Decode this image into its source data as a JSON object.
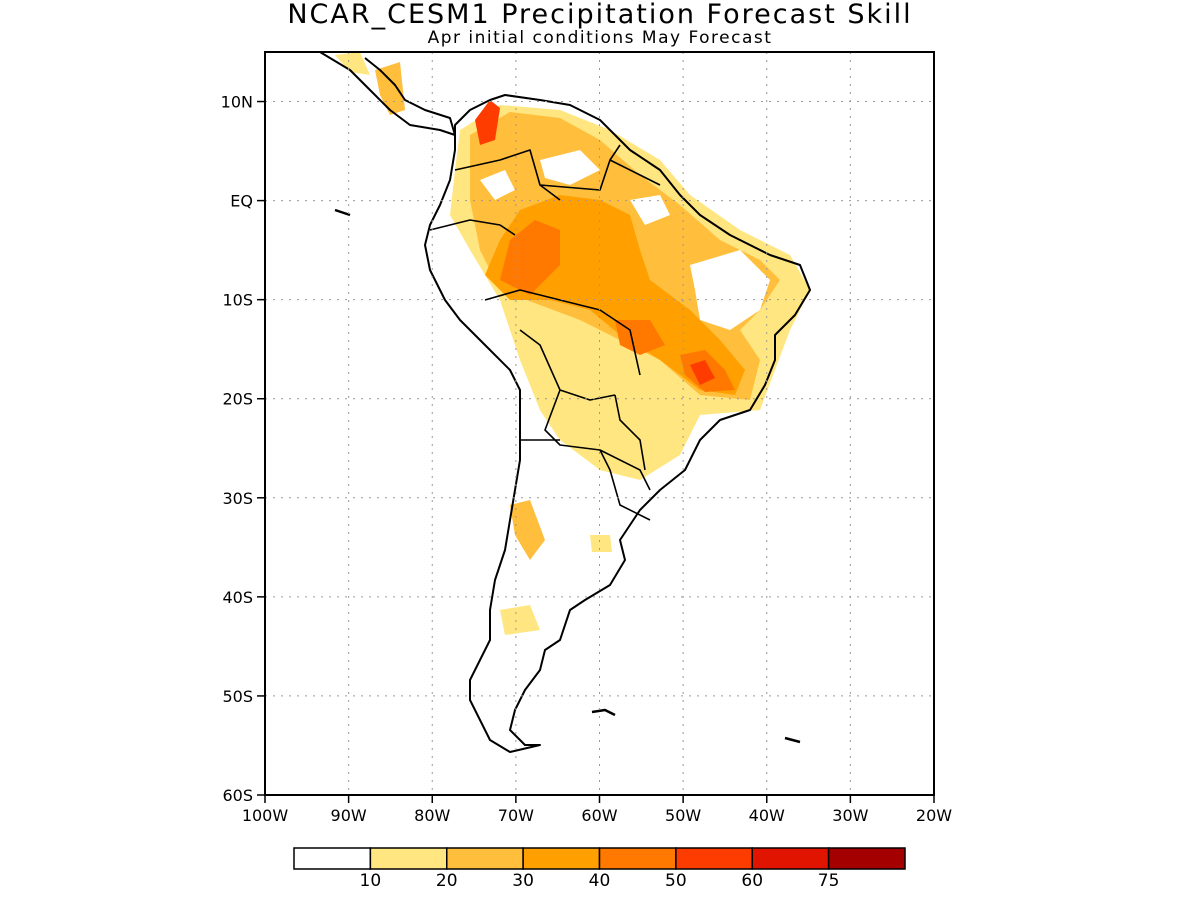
{
  "title": "NCAR_CESM1 Precipitation Forecast Skill",
  "subtitle": "Apr initial conditions   May Forecast",
  "map": {
    "region": "South America",
    "lon_range": [
      -100,
      -20
    ],
    "lat_range": [
      -60,
      15
    ],
    "grid": true,
    "y_ticks": [
      {
        "lat": 10,
        "label": "10N"
      },
      {
        "lat": 0,
        "label": "EQ"
      },
      {
        "lat": -10,
        "label": "10S"
      },
      {
        "lat": -20,
        "label": "20S"
      },
      {
        "lat": -30,
        "label": "30S"
      },
      {
        "lat": -40,
        "label": "40S"
      },
      {
        "lat": -50,
        "label": "50S"
      },
      {
        "lat": -60,
        "label": "60S"
      }
    ],
    "x_ticks": [
      {
        "lon": -100,
        "label": "100W"
      },
      {
        "lon": -90,
        "label": "90W"
      },
      {
        "lon": -80,
        "label": "80W"
      },
      {
        "lon": -70,
        "label": "70W"
      },
      {
        "lon": -60,
        "label": "60W"
      },
      {
        "lon": -50,
        "label": "50W"
      },
      {
        "lon": -40,
        "label": "40W"
      },
      {
        "lon": -30,
        "label": "30W"
      },
      {
        "lon": -20,
        "label": "20W"
      }
    ]
  },
  "colorbar": {
    "colors": [
      "#ffffff",
      "#ffe680",
      "#ffbe3c",
      "#ffa000",
      "#ff7800",
      "#ff3c00",
      "#e11400",
      "#a50000"
    ],
    "labels": [
      "10",
      "20",
      "30",
      "40",
      "50",
      "60",
      "75"
    ]
  }
}
